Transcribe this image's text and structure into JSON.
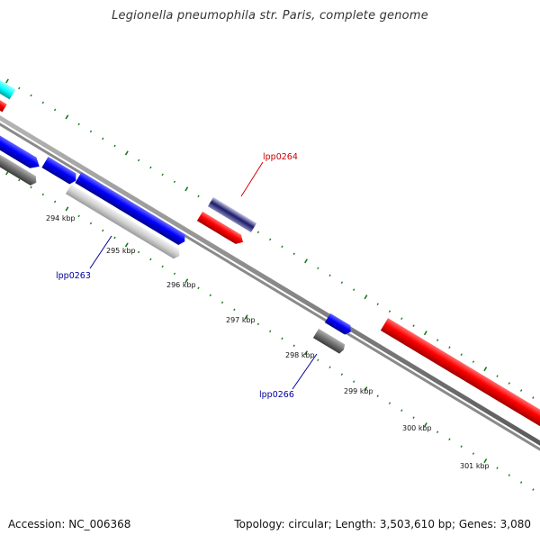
{
  "title": "Legionella pneumophila str. Paris, complete genome",
  "footer": {
    "accession": "Accession: NC_006368",
    "summary": "Topology: circular; Length: 3,503,610 bp; Genes: 3,080"
  },
  "colors": {
    "backbone": "#808080",
    "tick": "#1a7a1a",
    "forward_gene": "#ff0000",
    "reverse_gene": "#0000ff",
    "cds": "#2a2aff",
    "rna": "#00ffff",
    "grey_feature": "#777777",
    "light_feature": "#cfcfcf",
    "label_forward": "#cc0000",
    "label_reverse": "#000099"
  },
  "ruler": {
    "labels": [
      "294 kbp",
      "295 kbp",
      "296 kbp",
      "297 kbp",
      "298 kbp",
      "299 kbp",
      "300 kbp",
      "301 kbp"
    ]
  },
  "gene_labels": [
    {
      "name": "lpp0264",
      "strand": "forward"
    },
    {
      "name": "lpp0263",
      "strand": "reverse"
    },
    {
      "name": "lpp0266",
      "strand": "reverse"
    }
  ]
}
